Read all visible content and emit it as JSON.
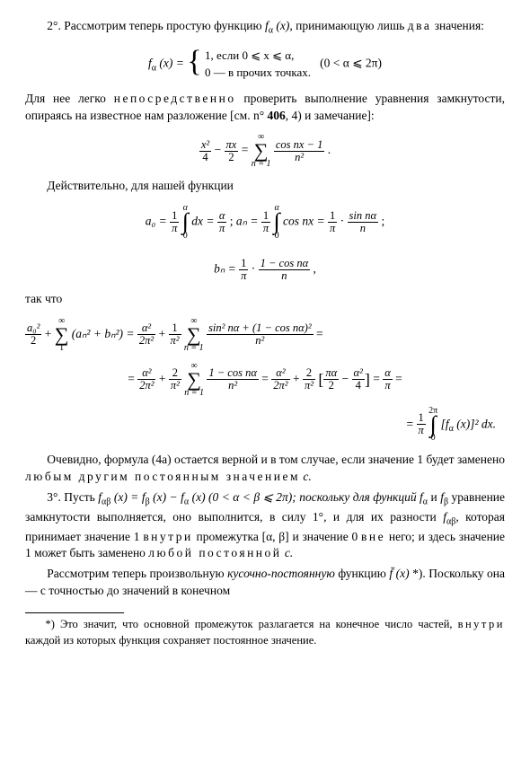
{
  "para1_a": "2°. Рассмотрим теперь простую функцию ",
  "para1_fn": "f",
  "para1_sub": "α",
  "para1_arg": " (x)",
  "para1_b": ", принимающую лишь ",
  "para1_two": "два",
  "para1_c": " значения:",
  "eq1_lhs_f": "f",
  "eq1_lhs_sub": "α",
  "eq1_lhs_arg": " (x) = ",
  "eq1_case1": "1,     если  0 ⩽ x ⩽ α,",
  "eq1_case2": "0 — в прочих точках.",
  "eq1_cond": "(0 < α ⩽ 2π)",
  "para2_a": "Для нее легко ",
  "para2_direct": "непосредственно",
  "para2_b": " проверить выполнение урав­нения замкнутости, опираясь на известное нам разложение [см. n° ",
  "para2_ref": "406",
  "para2_c": ", 4) и замечание]:",
  "eq2_f1num": "x²",
  "eq2_f1den": "4",
  "eq2_minus": " − ",
  "eq2_f2num": "πx",
  "eq2_f2den": "2",
  "eq2_eq": " = ",
  "eq2_sumtop": "∞",
  "eq2_sumbot": "n = 1",
  "eq2_rnum": "cos nx − 1",
  "eq2_rden": "n²",
  "eq2_dot": " .",
  "para3": "Действительно, для нашей функции",
  "eq3_a0": "a₀ = ",
  "eq3_a0_f1n": "1",
  "eq3_a0_f1d": "π",
  "eq3_int_top": "α",
  "eq3_int_bot": "0",
  "eq3_a0_dx": " dx = ",
  "eq3_a0_f2n": "α",
  "eq3_a0_f2d": "π",
  "eq3_semi": " ;   ",
  "eq3_an": "aₙ = ",
  "eq3_an_cos": " cos nx = ",
  "eq3_an_mid": " · ",
  "eq3_an_f3n": "sin nα",
  "eq3_an_f3d": "n",
  "eq3_bn": "bₙ = ",
  "eq3_bn_f3n": "1 − cos nα",
  "eq3_bn_f3d": "n",
  "eq3_bn_comma": " ,",
  "so": "так что",
  "eq4_l1n": "a₀²",
  "eq4_l1d": "2",
  "eq4_plus": " + ",
  "eq4_sumtop": "∞",
  "eq4_sumbot": "1",
  "eq4_body": "(aₙ² + bₙ²) = ",
  "eq4_f1n": "α²",
  "eq4_f1d": "2π²",
  "eq4_f2n": "1",
  "eq4_f2d": "π²",
  "eq4_sumbot2": "n = 1",
  "eq4_bigfn": "sin² nα + (1 − cos nα)²",
  "eq4_bigfd": "n²",
  "eq4_eqend": " =",
  "eq5_eq": "= ",
  "eq5_f2n": "2",
  "eq5_f2d": "π²",
  "eq5_bigfn": "1 − cos nα",
  "eq5_bigfd": "n²",
  "eq5_br_l": "πα",
  "eq5_br_l2": "2",
  "eq5_br_r": "α²",
  "eq5_br_r2": "4",
  "eq5_res_n": "α",
  "eq5_res_d": "π",
  "eq6_top": "2π",
  "eq6_bot": "0",
  "eq6_body1": " [f",
  "eq6_body_sub": "α",
  "eq6_body2": " (x)]² dx.",
  "para4_a": "Очевидно, формула (4а) остается верной и в том случае, если значение 1 будет заменено ",
  "para4_any": "любым другим постоянным зна­чением",
  "para4_c": " c.",
  "para5_a": "3°. Пусть   ",
  "para5_fab": "f",
  "para5_fab_sub": "αβ",
  "para5_fab_arg": " (x) = f",
  "para5_fb_sub": "β",
  "para5_mid": " (x) − f",
  "para5_fa_sub": "α",
  "para5_end": " (x)   (0 < α < β ⩽ 2π);  поскольку для функций ",
  "para5_f1": "f",
  "para5_f1s": "α",
  "para5_and": " и ",
  "para5_f2": "f",
  "para5_f2s": "β",
  "para5_b": " уравнение замкнутости выполняется, оно вы­полнится, в силу 1°, и для их разности ",
  "para5_f3": "f",
  "para5_f3s": "αβ",
  "para5_c": ", которая принимает зна­чение 1 ",
  "para5_in": "внутри",
  "para5_d": " промежутка [α, β] и значение 0 ",
  "para5_out": "вне",
  "para5_e": " него; и здесь значение 1 может быть заменено ",
  "para5_const": "любой постоянной",
  "para5_f": " c.",
  "para6_a": "Рассмотрим теперь произвольную ",
  "para6_pw": "кусочно-постоянную",
  "para6_b": " функцию ",
  "para6_fbar": "f̄ (x)",
  "para6_star": " *). Поскольку она — с точностью до значений в конечном",
  "foot_a": "*) Это значит, что основной промежуток разлагается на конечное чис­ло частей, ",
  "foot_in": "внутри",
  "foot_b": " каждой из которых функция сохраняет постоянное значение."
}
